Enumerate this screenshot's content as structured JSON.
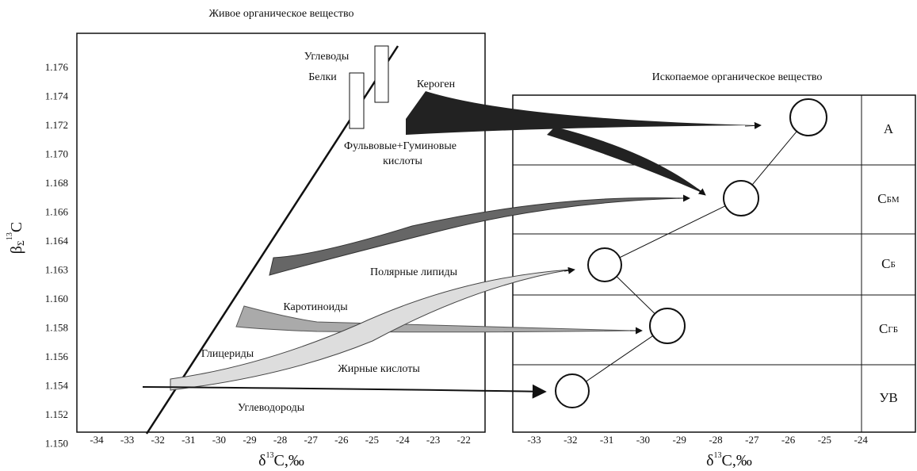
{
  "left_panel": {
    "title": "Живое органическое вещество",
    "y_label": {
      "main": "β",
      "sub": "Σ",
      "sup": "13",
      "unit": "C"
    },
    "yticks": [
      "1.176",
      "1.174",
      "1.172",
      "1.170",
      "1.168",
      "1.166",
      "1.164",
      "1.163",
      "1.160",
      "1.158",
      "1.156",
      "1.154",
      "1.152",
      "1.150"
    ],
    "xticks": [
      "-34",
      "-33",
      "-32",
      "-31",
      "-30",
      "-29",
      "-28",
      "-27",
      "-26",
      "-25",
      "-24",
      "-23",
      "-22"
    ],
    "x_label": {
      "main": "δ",
      "sup": "13",
      "unit": "C,‰"
    },
    "labels": {
      "carbohydrates": "Углеводы",
      "proteins": "Белки",
      "kerogen": "Кероген",
      "humic": [
        "Фульвовые+Гуминовые",
        "кислоты"
      ],
      "polar_lipids": "Полярные липиды",
      "carotenoids": "Каротиноиды",
      "glycerides": "Глицериды",
      "fatty_acids": "Жирные кислоты",
      "hydrocarbons": "Углеводороды"
    }
  },
  "right_panel": {
    "title": "Ископаемое органическое вещество",
    "xticks": [
      "-33",
      "-32",
      "-31",
      "-30",
      "-29",
      "-28",
      "-27",
      "-26",
      "-25",
      "-24"
    ],
    "x_label": {
      "main": "δ",
      "sup": "13",
      "unit": "C,‰"
    },
    "rows": [
      {
        "main": "А",
        "sub": ""
      },
      {
        "main": "С",
        "sub": "БМ"
      },
      {
        "main": "С",
        "sub": "Б"
      },
      {
        "main": "С",
        "sub": "ГБ"
      },
      {
        "main": "УВ",
        "sub": ""
      }
    ]
  }
}
